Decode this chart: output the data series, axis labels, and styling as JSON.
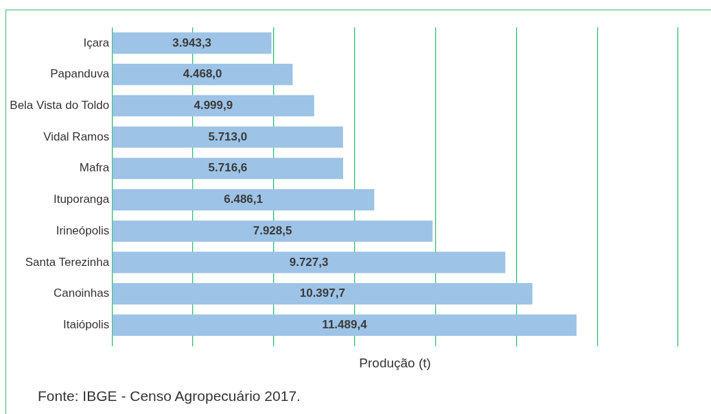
{
  "chart_data": {
    "type": "bar",
    "orientation": "horizontal",
    "xlabel": "Produção (t)",
    "categories": [
      "Içara",
      "Papanduva",
      "Bela Vista do Toldo",
      "Vidal Ramos",
      "Mafra",
      "Ituporanga",
      "Irineópolis",
      "Santa Terezinha",
      "Canoinhas",
      "Itaiópolis"
    ],
    "values": [
      3943.3,
      4468.0,
      4999.9,
      5713.0,
      5716.6,
      6486.1,
      7928.5,
      9727.3,
      10397.7,
      11489.4
    ],
    "value_labels": [
      "3.943,3",
      "4.468,0",
      "4.999,9",
      "5.713,0",
      "5.716,6",
      "6.486,1",
      "7.928,5",
      "9.727,3",
      "10.397,7",
      "11.489,4"
    ],
    "color": "#9dc3e6",
    "xlim": [
      0,
      14000
    ],
    "xticks": [
      {
        "value": 0,
        "label": null
      },
      {
        "value": 2000,
        "label": null
      },
      {
        "value": 4000,
        "label": null
      },
      {
        "value": 6000,
        "label": null
      },
      {
        "value": 8000,
        "label": null
      },
      {
        "value": 10000,
        "label": null
      },
      {
        "value": 12000,
        "label": null
      },
      {
        "value": 14000,
        "label": null
      }
    ],
    "tick_labels": "y",
    "grid": "x",
    "legend": false,
    "annotations": [
      "Fonte: IBGE - Censo Agropecuário 2017."
    ]
  }
}
